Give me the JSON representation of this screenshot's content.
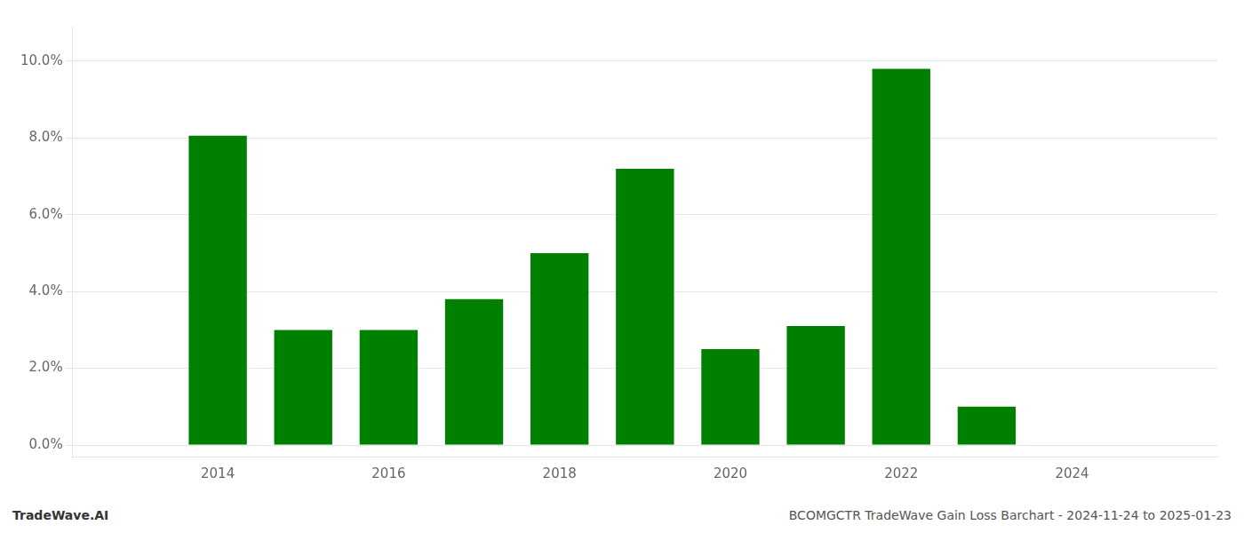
{
  "chart_data": {
    "type": "bar",
    "x": [
      2014,
      2015,
      2016,
      2017,
      2018,
      2019,
      2020,
      2021,
      2022,
      2023,
      2024
    ],
    "values": [
      0.0806,
      0.03,
      0.03,
      0.038,
      0.05,
      0.072,
      0.025,
      0.031,
      0.098,
      0.01,
      0.0
    ],
    "color": "#008000",
    "xlim": [
      2012.3,
      2025.7
    ],
    "xticks": [
      2014,
      2016,
      2018,
      2020,
      2022,
      2024
    ],
    "ylim": [
      -0.003,
      0.109
    ],
    "yticks": [
      {
        "value": 0.0,
        "label": "0.0%"
      },
      {
        "value": 0.02,
        "label": "2.0%"
      },
      {
        "value": 0.04,
        "label": "4.0%"
      },
      {
        "value": 0.06,
        "label": "6.0%"
      },
      {
        "value": 0.08,
        "label": "8.0%"
      },
      {
        "value": 0.1,
        "label": "10.0%"
      }
    ],
    "grid": "y",
    "annotations": [
      "TradeWave.AI",
      "BCOMGCTR TradeWave Gain Loss Barchart - 2024-11-24 to 2025-01-23"
    ]
  }
}
